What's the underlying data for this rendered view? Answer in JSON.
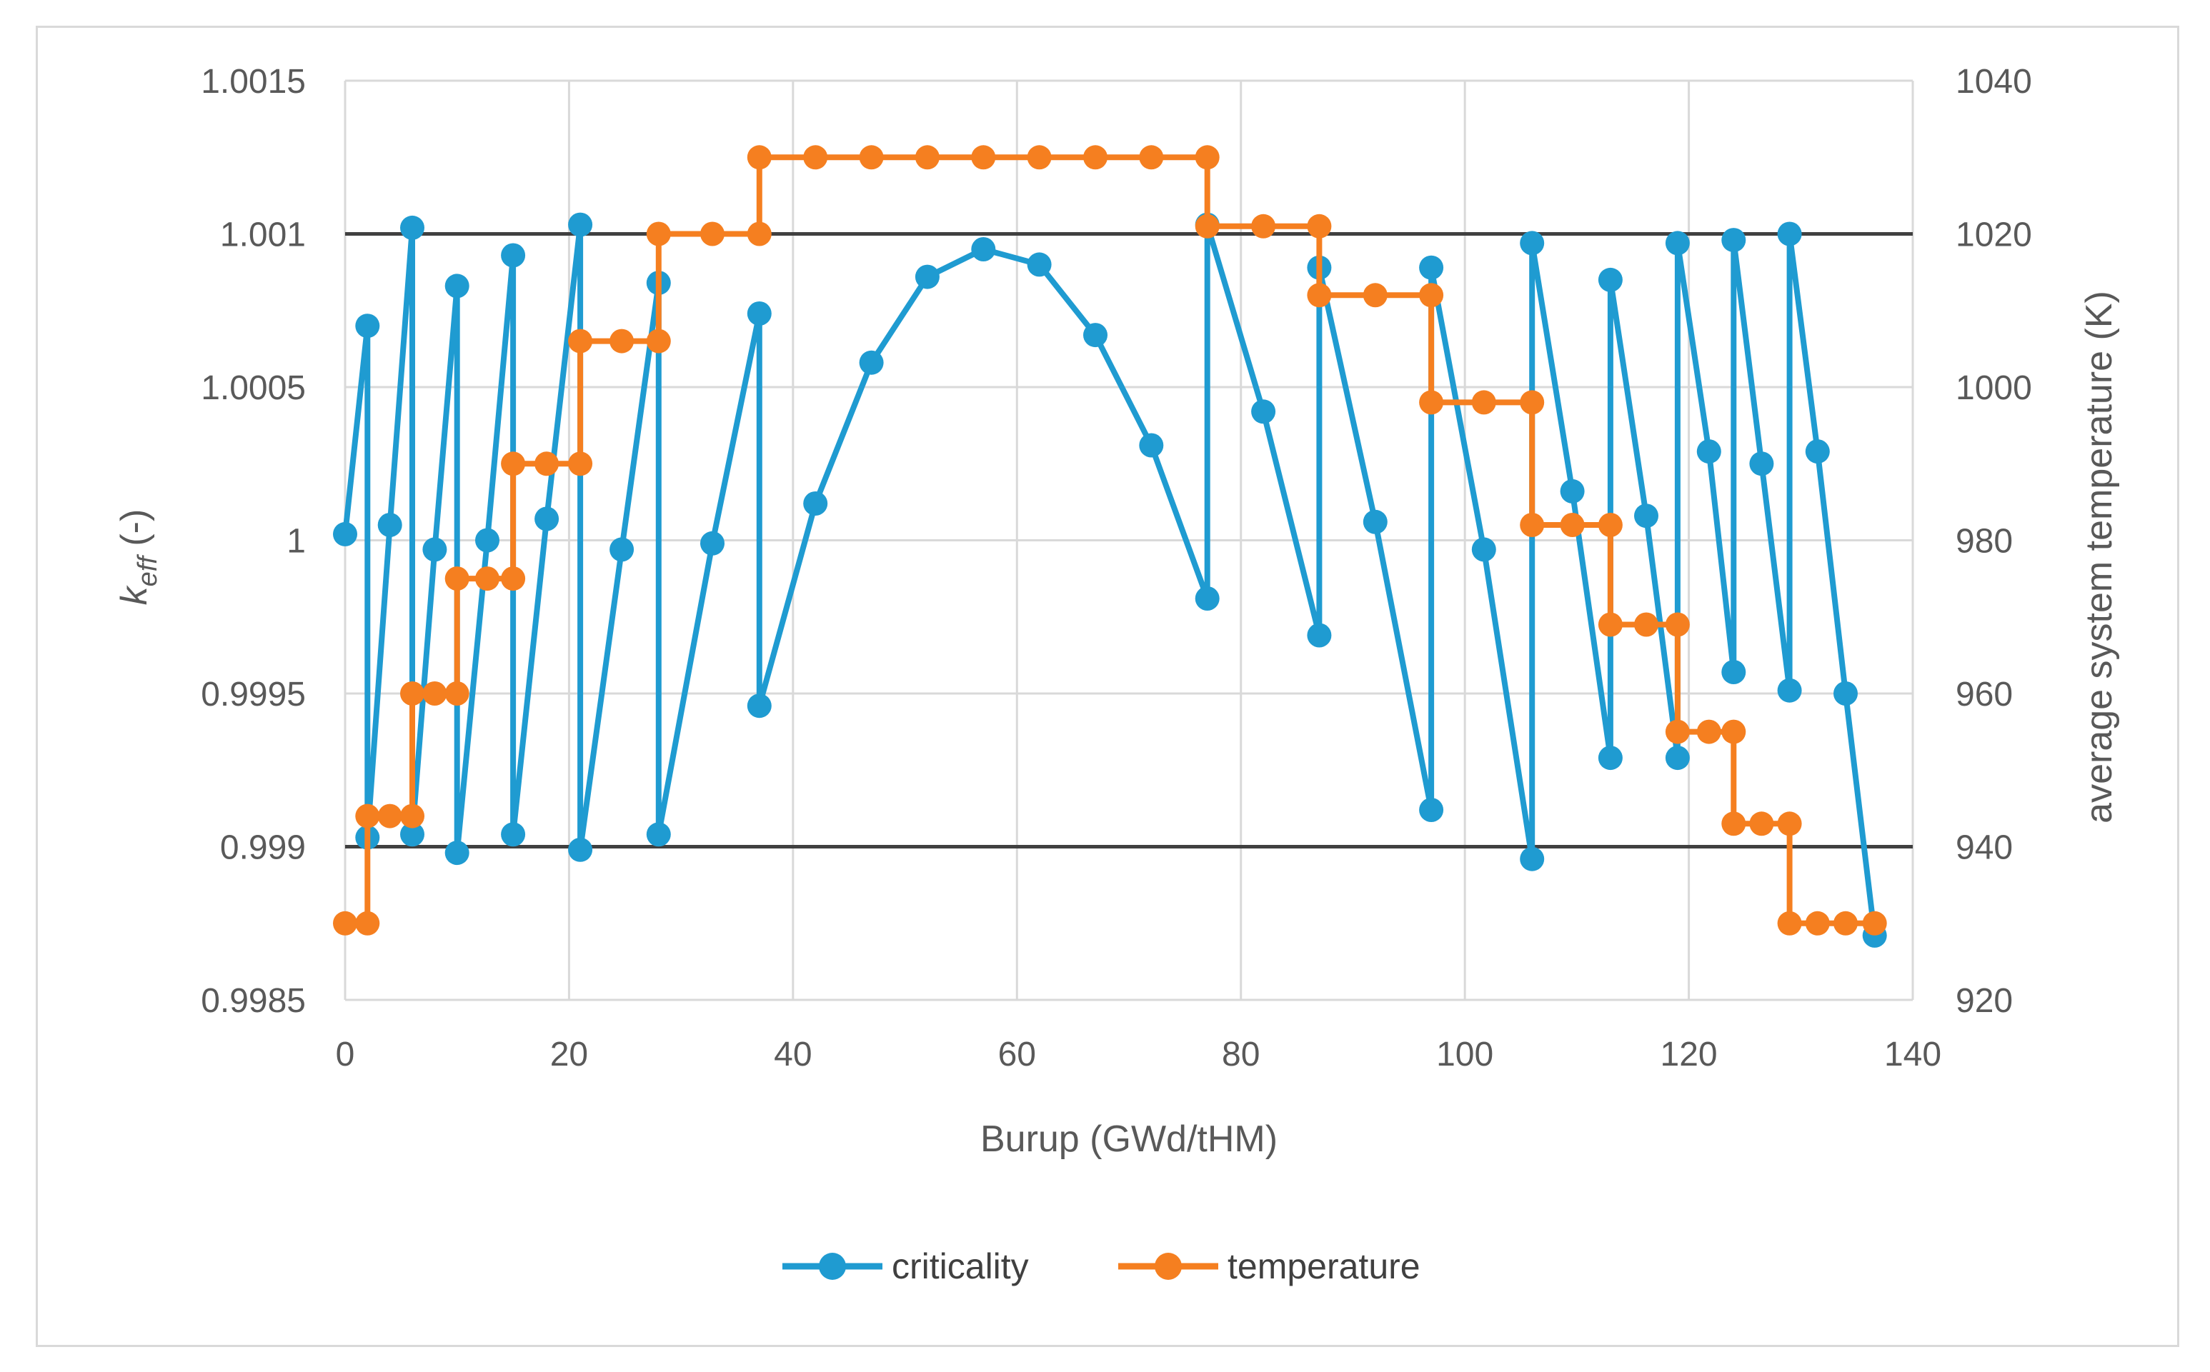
{
  "chart_data": {
    "type": "line",
    "title": "",
    "xlabel": "Burup (GWd/tHM)",
    "ylabel_main": "k",
    "ylabel_sub": "eff",
    "ylabel_unit": " (-)",
    "y2label": "average system temperature (K)",
    "xlim": [
      0,
      140
    ],
    "ylim": [
      0.9985,
      1.0015
    ],
    "y2lim": [
      920,
      1040
    ],
    "x_ticks": [
      0,
      20,
      40,
      60,
      80,
      100,
      120,
      140
    ],
    "y_ticks": [
      0.9985,
      0.999,
      0.9995,
      1.0,
      1.0005,
      1.001,
      1.0015
    ],
    "y_tick_labels": [
      "0.9985",
      "0.999",
      "0.9995",
      "1",
      "1.0005",
      "1.001",
      "1.0015"
    ],
    "y2_ticks": [
      920,
      940,
      960,
      980,
      1000,
      1020,
      1040
    ],
    "reference_lines": [
      1.001,
      0.999
    ],
    "grid": true,
    "legend_position": "bottom",
    "colors": {
      "criticality": "#1f9bd1",
      "temperature": "#f57f20",
      "reference": "#404040",
      "grid": "#d9d9d9"
    },
    "series": [
      {
        "name": "criticality",
        "axis": "left",
        "step": false,
        "x": [
          0,
          2,
          2,
          4,
          6,
          6,
          8,
          10,
          10,
          12.7,
          15,
          15,
          18,
          21,
          21,
          24.7,
          28,
          28,
          32.8,
          37,
          37,
          42,
          47,
          52,
          57,
          62,
          67,
          72,
          77,
          77,
          82,
          87,
          87,
          92,
          97,
          97,
          101.7,
          106,
          106,
          109.6,
          113,
          113,
          116.2,
          119,
          119,
          121.8,
          124,
          124,
          126.5,
          129,
          129,
          131.5,
          134,
          136.6
        ],
        "values": [
          1.00002,
          1.0007,
          0.99903,
          1.00005,
          1.00102,
          0.99904,
          0.99997,
          1.00083,
          0.99898,
          1.0,
          1.00093,
          0.99904,
          1.00007,
          1.00103,
          0.99899,
          0.99997,
          1.00084,
          0.99904,
          0.99999,
          1.00074,
          0.99946,
          1.00012,
          1.00058,
          1.00086,
          1.00095,
          1.0009,
          1.00067,
          1.00031,
          0.99981,
          1.00103,
          1.00042,
          0.99969,
          1.00089,
          1.00006,
          0.99912,
          1.00089,
          0.99997,
          0.99896,
          1.00097,
          1.00016,
          0.99929,
          1.00085,
          1.00008,
          0.99929,
          1.00097,
          1.00029,
          0.99957,
          1.00098,
          1.00025,
          0.99951,
          1.001,
          1.00029,
          0.9995,
          0.99871
        ]
      },
      {
        "name": "temperature",
        "axis": "right",
        "step": true,
        "x": [
          0,
          2,
          2,
          4,
          6,
          6,
          8,
          10,
          10,
          12.7,
          15,
          15,
          18,
          21,
          21,
          24.7,
          28,
          28,
          32.8,
          37,
          37,
          42,
          47,
          52,
          57,
          62,
          67,
          72,
          77,
          77,
          82,
          87,
          87,
          92,
          97,
          97,
          101.7,
          106,
          106,
          109.6,
          113,
          113,
          116.2,
          119,
          119,
          121.8,
          124,
          124,
          126.5,
          129,
          129,
          131.5,
          134,
          136.6
        ],
        "values": [
          930,
          930,
          944,
          944,
          944,
          960,
          960,
          960,
          975,
          975,
          975,
          990,
          990,
          990,
          1006,
          1006,
          1006,
          1020,
          1020,
          1020,
          1030,
          1030,
          1030,
          1030,
          1030,
          1030,
          1030,
          1030,
          1030,
          1021,
          1021,
          1021,
          1012,
          1012,
          1012,
          998,
          998,
          998,
          982,
          982,
          982,
          969,
          969,
          969,
          955,
          955,
          955,
          943,
          943,
          943,
          930,
          930,
          930,
          930
        ]
      }
    ]
  }
}
